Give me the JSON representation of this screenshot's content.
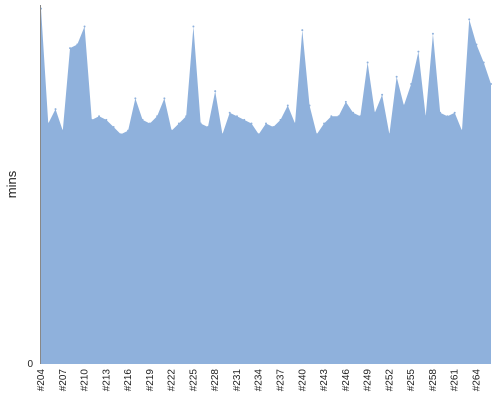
{
  "chart_data": {
    "type": "area",
    "ylabel": "mins",
    "xlabel": "",
    "title": "",
    "ylim": [
      0,
      100
    ],
    "y_ticks": [
      0
    ],
    "grid": false,
    "colors": {
      "fill": "#8fb1dc",
      "axis": "#888888",
      "text": "#222222"
    },
    "x_tick_labels": [
      "#204",
      "#207",
      "#210",
      "#213",
      "#216",
      "#219",
      "#222",
      "#225",
      "#228",
      "#231",
      "#234",
      "#237",
      "#240",
      "#243",
      "#246",
      "#249",
      "#252",
      "#255",
      "#258",
      "#261",
      "#264"
    ],
    "categories": [
      "#204",
      "#205",
      "#206",
      "#207",
      "#208",
      "#209",
      "#210",
      "#211",
      "#212",
      "#213",
      "#214",
      "#215",
      "#216",
      "#217",
      "#218",
      "#219",
      "#220",
      "#221",
      "#222",
      "#223",
      "#224",
      "#225",
      "#226",
      "#227",
      "#228",
      "#229",
      "#230",
      "#231",
      "#232",
      "#233",
      "#234",
      "#235",
      "#236",
      "#237",
      "#238",
      "#239",
      "#240",
      "#241",
      "#242",
      "#243",
      "#244",
      "#245",
      "#246",
      "#247",
      "#248",
      "#249",
      "#250",
      "#251",
      "#252",
      "#253",
      "#254",
      "#255",
      "#256",
      "#257",
      "#258",
      "#259",
      "#260",
      "#261",
      "#262",
      "#263",
      "#264",
      "#265",
      "#266"
    ],
    "series": [
      {
        "values": [
          99,
          67,
          71,
          65,
          88,
          89,
          94,
          68,
          69,
          68,
          66,
          64,
          65,
          74,
          68,
          67,
          69,
          74,
          65,
          67,
          69,
          94,
          67,
          66,
          76,
          64,
          70,
          69,
          68,
          67,
          64,
          67,
          66,
          68,
          72,
          67,
          93,
          72,
          64,
          67,
          69,
          69,
          73,
          70,
          69,
          84,
          70,
          75,
          64,
          80,
          72,
          78,
          87,
          69,
          92,
          70,
          69,
          70,
          65,
          96,
          89,
          84,
          78
        ]
      }
    ]
  }
}
